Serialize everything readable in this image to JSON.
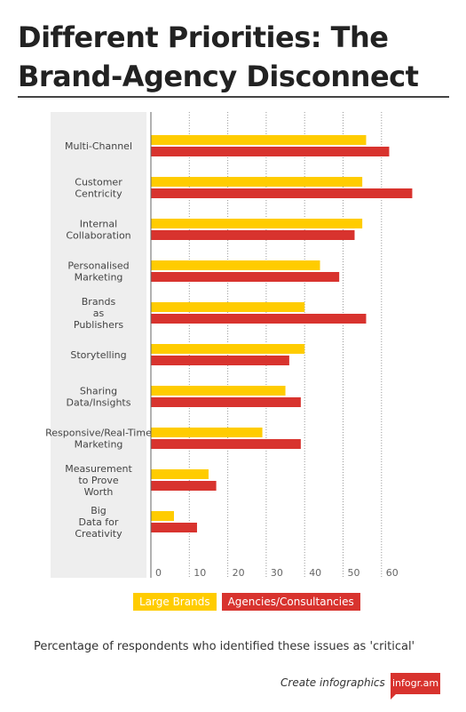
{
  "title": "Different Priorities: The Brand-Agency Disconnect",
  "footnote": "Percentage of respondents who identified these issues as 'critical'",
  "credit": "Create infographics",
  "brand_badge": "infogr.am",
  "colors": {
    "large_brands": "#ffcc00",
    "agencies": "#d8332e",
    "label_panel": "#eeeeee"
  },
  "chart_data": {
    "type": "bar",
    "orientation": "horizontal",
    "categories": [
      [
        "Multi-Channel"
      ],
      [
        "Customer",
        "Centricity"
      ],
      [
        "Internal",
        "Collaboration"
      ],
      [
        "Personalised",
        "Marketing"
      ],
      [
        "Brands",
        "as",
        "Publishers"
      ],
      [
        "Storytelling"
      ],
      [
        "Sharing",
        "Data/Insights"
      ],
      [
        "Responsive/Real-Time",
        "Marketing"
      ],
      [
        "Measurement",
        "to Prove",
        "Worth"
      ],
      [
        "Big",
        "Data for",
        "Creativity"
      ]
    ],
    "series": [
      {
        "name": "Large Brands",
        "color": "#ffcc00",
        "values": [
          56,
          55,
          55,
          44,
          40,
          40,
          35,
          29,
          15,
          6
        ]
      },
      {
        "name": "Agencies/Consultancies",
        "color": "#d8332e",
        "values": [
          62,
          68,
          53,
          49,
          56,
          36,
          39,
          39,
          17,
          12
        ]
      }
    ],
    "xticks": [
      0,
      10,
      20,
      30,
      40,
      50,
      60
    ],
    "xlim": [
      0,
      70
    ],
    "grid": true,
    "legend": "bottom"
  }
}
